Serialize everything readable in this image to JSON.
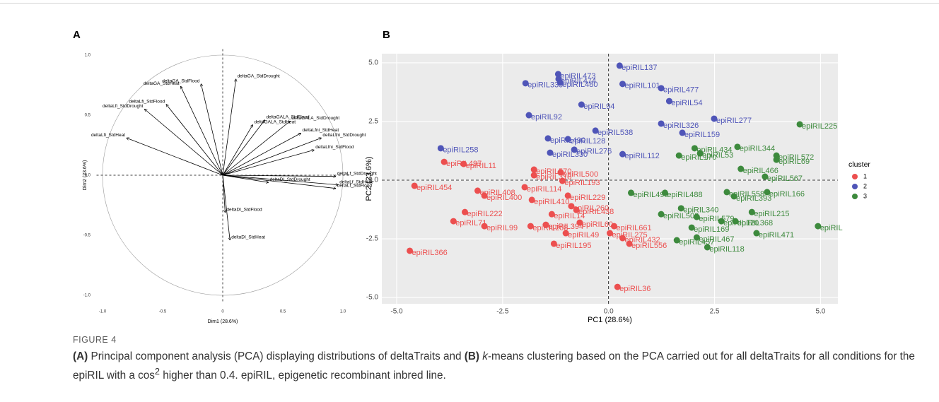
{
  "chart_data": [
    {
      "panel": "A",
      "type": "pca-variables",
      "x_label": "Dim1 (28.6%)",
      "y_label": "Dim2 (23.6%)",
      "color": "#000000",
      "xlim": [
        -1.05,
        1.05
      ],
      "ylim": [
        -1.05,
        1.05
      ],
      "xticks": [
        {
          "value": -1,
          "label": "-1.0"
        },
        {
          "value": -0.5,
          "label": "-0.5"
        },
        0,
        {
          "value": 0.5,
          "label": "0.5"
        },
        {
          "value": 1,
          "label": "1.0"
        }
      ],
      "yticks": [
        {
          "value": -1,
          "label": "-1.0"
        },
        {
          "value": -0.5,
          "label": "-0.5"
        },
        {
          "value": 0,
          "label": "0.0"
        },
        {
          "value": 0.5,
          "label": "0.5"
        },
        {
          "value": 1,
          "label": "1.0"
        }
      ],
      "labels": [
        "deltaGA_StdDrought",
        "deltaGA_StdFlood",
        "deltaGA_StdHeat",
        "deltaLfi_StdFlood",
        "deltaLfi_StdDrought",
        "deltaLfi_StdHeat",
        "deltaGALA_StdFlood",
        "deltaGALA_StdHeat",
        "deltaGALA_StdDrought",
        "deltaLfni_StdHeat",
        "deltaLfni_StdDrought",
        "deltaLfni_StdFlood",
        "deltaLf_StdDrought",
        "deltaLf_StdHeat",
        "deltaLf_StdFlood",
        "deltaDI_StdDrought",
        "deltaDI_StdFlood",
        "deltaDI_StdHeat"
      ],
      "x": [
        0.11,
        -0.18,
        -0.35,
        -0.47,
        -0.65,
        -0.8,
        0.35,
        0.25,
        0.56,
        0.65,
        0.82,
        0.76,
        0.94,
        0.96,
        0.94,
        0.38,
        0.02,
        0.06
      ],
      "values": [
        0.8,
        0.76,
        0.74,
        0.59,
        0.55,
        0.31,
        0.46,
        0.42,
        0.45,
        0.35,
        0.31,
        0.21,
        -0.01,
        -0.08,
        -0.11,
        -0.06,
        -0.31,
        -0.54
      ]
    },
    {
      "panel": "B",
      "type": "scatter",
      "x_label": "PC1 (28.6%)",
      "y_label": "PC2 (23.6%)",
      "grid": true,
      "legend_title": "cluster",
      "legend": "right",
      "xlim": [
        -5.35,
        5.41
      ],
      "ylim": [
        -5.27,
        5.39
      ],
      "xticks": [
        {
          "value": -5,
          "label": "-5.0"
        },
        {
          "value": -2.5,
          "label": "-2.5"
        },
        {
          "value": 0,
          "label": "0.0"
        },
        2.5,
        {
          "value": 5,
          "label": "5.0"
        }
      ],
      "yticks": [
        {
          "value": -5,
          "label": "-5.0"
        },
        {
          "value": -2.5,
          "label": "-2.5"
        },
        {
          "value": 0,
          "label": "0.0"
        },
        2.5,
        {
          "value": 5,
          "label": "5.0"
        }
      ],
      "series": [
        {
          "name": "1",
          "color": "#ec4f4f",
          "labels": [
            "epiRIL497",
            "epiRIL11",
            "epiRIL570",
            "epiRIL500",
            "epiRIL310",
            "epiRIL193",
            "epiRIL454",
            "epiRIL114",
            "epiRIL408",
            "epiRIL400",
            "epiRIL229",
            "epiRIL410",
            "epiRIL260",
            "epiRIL438",
            "epiRIL222",
            "epiRIL14",
            "epiRIL71",
            "epiRIL60",
            "epiRIL661",
            "epiRIL99",
            "epiRIL208",
            "epiRIL394",
            "epiRIL275",
            "epiRIL49",
            "epiRIL432",
            "epiRIL556",
            "epiRIL195",
            "epiRIL366",
            "epiRIL36"
          ],
          "x": [
            -3.88,
            -3.42,
            -1.76,
            -1.13,
            -1.76,
            -1.09,
            -4.58,
            -1.98,
            -3.09,
            -2.93,
            -0.96,
            -1.81,
            -0.88,
            -0.76,
            -3.39,
            -1.34,
            -3.66,
            -0.68,
            0.13,
            -2.93,
            -1.84,
            -1.48,
            0.03,
            -1.01,
            0.33,
            0.49,
            -1.29,
            -4.69,
            0.21
          ],
          "values": [
            0.78,
            0.69,
            0.45,
            0.33,
            0.21,
            -0.03,
            -0.24,
            -0.3,
            -0.45,
            -0.66,
            -0.66,
            -0.84,
            -1.11,
            -1.27,
            -1.36,
            -1.45,
            -1.75,
            -1.81,
            -1.96,
            -1.96,
            -1.96,
            -1.9,
            -2.26,
            -2.26,
            -2.47,
            -2.71,
            -2.71,
            -3.01,
            -4.55
          ]
        },
        {
          "name": "2",
          "color": "#4f55b8",
          "labels": [
            "epiRIL137",
            "epiRIL473",
            "epiRIL474",
            "epiRIL339",
            "epiRIL480",
            "epiRIL101",
            "epiRIL477",
            "epiRIL54",
            "epiRIL94",
            "epiRIL92",
            "epiRIL277",
            "epiRIL326",
            "epiRIL538",
            "epiRIL159",
            "epiRIL490",
            "epiRIL128",
            "epiRIL276",
            "epiRIL330",
            "epiRIL258",
            "epiRIL112"
          ],
          "x": [
            0.26,
            -1.19,
            -1.18,
            -1.96,
            -1.14,
            0.33,
            1.24,
            1.43,
            -0.64,
            -1.88,
            2.49,
            1.24,
            -0.31,
            1.74,
            -1.43,
            -0.96,
            -0.81,
            -1.38,
            -3.96,
            0.33
          ],
          "values": [
            4.88,
            4.52,
            4.31,
            4.13,
            4.16,
            4.1,
            3.92,
            3.37,
            3.22,
            2.77,
            2.62,
            2.41,
            2.11,
            2.02,
            1.78,
            1.75,
            1.3,
            1.17,
            1.36,
            1.11
          ]
        },
        {
          "name": "3",
          "color": "#3d8a3d",
          "labels": [
            "epiRIL225",
            "epiRIL434",
            "epiRIL344",
            "epiRIL53",
            "epiRIL170",
            "epiRIL572",
            "epiRIL69",
            "epiRIL466",
            "epiRIL567",
            "epiRIL166",
            "epiRIL558",
            "epiRIL393",
            "epiRIL499",
            "epiRIL488",
            "epiRIL340",
            "epiRIL215",
            "epiRIL508",
            "epiRIL579",
            "epiRIL368",
            "epiRIL120",
            "epiRIL",
            "epiRIL169",
            "epiRIL471",
            "epiRIL467",
            "epiRIL457",
            "epiRIL118"
          ],
          "x": [
            4.51,
            2.03,
            3.04,
            2.16,
            1.66,
            3.96,
            3.96,
            3.12,
            3.69,
            3.74,
            2.79,
            2.96,
            0.53,
            1.33,
            1.71,
            3.38,
            1.24,
            2.08,
            2.99,
            2.66,
            4.94,
            1.96,
            3.49,
            2.08,
            1.61,
            2.33
          ],
          "values": [
            2.38,
            1.36,
            1.42,
            1.14,
            1.05,
            1.05,
            0.87,
            0.48,
            0.15,
            -0.51,
            -0.51,
            -0.69,
            -0.54,
            -0.54,
            -1.2,
            -1.36,
            -1.45,
            -1.57,
            -1.75,
            -1.75,
            -1.96,
            -2.02,
            -2.26,
            -2.44,
            -2.56,
            -2.86
          ]
        }
      ]
    }
  ],
  "figure": {
    "label": "FIGURE 4",
    "caption": [
      "(A)",
      " Principal component analysis (PCA) displaying distributions of deltaTraits and ",
      "(B)",
      " ",
      "k",
      "-means clustering based on the PCA carried out for all deltaTraits for all conditions for the epiRIL with a cos",
      "2",
      " higher than 0.4. epiRIL, epigenetic recombinant inbred line."
    ]
  }
}
